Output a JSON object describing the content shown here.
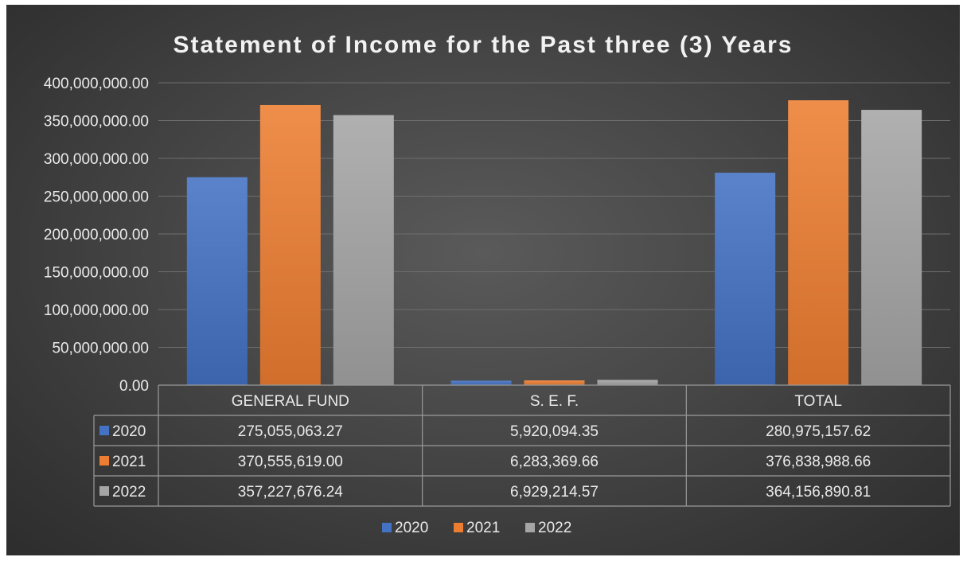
{
  "chart_data": {
    "type": "bar",
    "title": "Statement of Income for the Past three (3) Years",
    "categories": [
      "GENERAL FUND",
      "S. E. F.",
      "TOTAL"
    ],
    "series": [
      {
        "name": "2020",
        "color": "#4472c4",
        "values": [
          275055063.27,
          5920094.35,
          280975157.62
        ],
        "labels": [
          "275,055,063.27",
          "5,920,094.35",
          "280,975,157.62"
        ]
      },
      {
        "name": "2021",
        "color": "#ed7d31",
        "values": [
          370555619.0,
          6283369.66,
          376838988.66
        ],
        "labels": [
          "370,555,619.00",
          "6,283,369.66",
          "376,838,988.66"
        ]
      },
      {
        "name": "2022",
        "color": "#a5a5a5",
        "values": [
          357227676.24,
          6929214.57,
          364156890.81
        ],
        "labels": [
          "357,227,676.24",
          "6,929,214.57",
          "364,156,890.81"
        ]
      }
    ],
    "y_ticks": [
      "0.00",
      "50,000,000.00",
      "100,000,000.00",
      "150,000,000.00",
      "200,000,000.00",
      "250,000,000.00",
      "300,000,000.00",
      "350,000,000.00",
      "400,000,000.00"
    ],
    "ylim": [
      0,
      400000000
    ],
    "grid": true,
    "legend_position": "bottom",
    "data_table": true
  }
}
